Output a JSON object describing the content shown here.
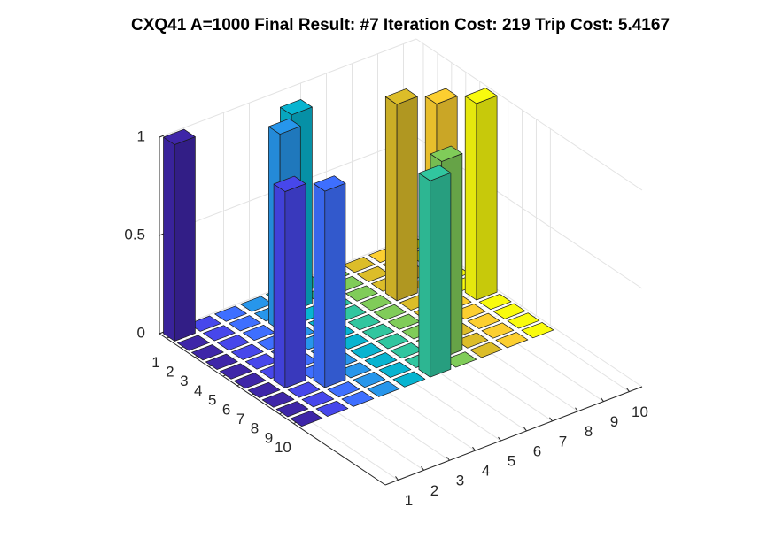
{
  "chart_data": {
    "type": "bar3",
    "title": "CXQ41 A=1000 Final Result: #7 Iteration Cost: 219 Trip Cost: 5.4167",
    "x": [
      1,
      2,
      3,
      4,
      5,
      6,
      7,
      8,
      9,
      10
    ],
    "y": [
      1,
      2,
      3,
      4,
      5,
      6,
      7,
      8,
      9,
      10
    ],
    "values": [
      [
        1,
        0,
        0,
        0,
        0,
        0,
        0,
        0,
        0,
        0
      ],
      [
        0,
        0,
        0,
        0,
        1,
        0,
        0,
        0,
        0,
        0
      ],
      [
        0,
        0,
        0,
        1,
        0,
        0,
        0,
        0,
        0,
        0
      ],
      [
        0,
        0,
        0,
        0,
        0,
        0,
        0,
        1,
        0,
        0
      ],
      [
        0,
        0,
        0,
        0,
        0,
        0,
        0,
        0,
        1,
        0
      ],
      [
        0,
        0,
        0,
        0,
        0,
        0,
        0,
        0,
        0,
        1
      ],
      [
        0,
        1,
        0,
        0,
        0,
        0,
        0,
        0,
        0,
        0
      ],
      [
        0,
        0,
        1,
        0,
        0,
        0,
        0,
        0,
        0,
        0
      ],
      [
        0,
        0,
        0,
        0,
        0,
        0,
        1,
        0,
        0,
        0
      ],
      [
        0,
        0,
        0,
        0,
        0,
        1,
        0,
        0,
        0,
        0
      ]
    ],
    "colors": [
      "#3e26a8",
      "#4747eb",
      "#3e6fff",
      "#2796eb",
      "#08b4d0",
      "#31c69f",
      "#80cc59",
      "#dcbd29",
      "#fccf30",
      "#f9fb0e"
    ],
    "xlim": [
      0.5,
      10.5
    ],
    "ylim": [
      0.5,
      16.5
    ],
    "zlim": [
      0,
      1
    ],
    "xticks": [
      1,
      2,
      3,
      4,
      5,
      6,
      7,
      8,
      9,
      10
    ],
    "yticks": [
      1,
      2,
      3,
      4,
      5,
      6,
      7,
      8,
      9,
      10
    ],
    "zticks": [
      0,
      0.5,
      1
    ],
    "grid": true
  }
}
